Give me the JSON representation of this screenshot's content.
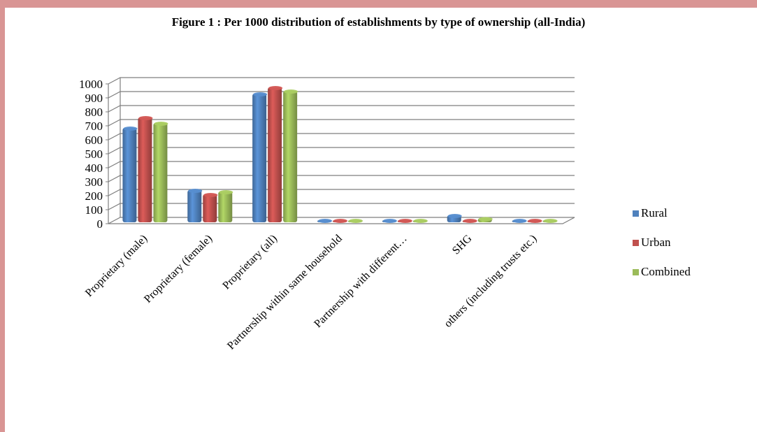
{
  "chart_data": {
    "type": "bar",
    "title": "Figure 1 : Per 1000 distribution of establishments by type of ownership (all-India)",
    "categories": [
      "Proprietary (male)",
      "Proprietary (female)",
      "Proprietary (all)",
      "Partnership within  same household",
      "Partnership with  different…",
      "SHG",
      "others (including trusts etc.)"
    ],
    "series": [
      {
        "name": "Rural",
        "color": "#4f81bd",
        "values": [
          685,
          240,
          930,
          3,
          5,
          60,
          10
        ]
      },
      {
        "name": "Urban",
        "color": "#c0504d",
        "values": [
          760,
          210,
          975,
          7,
          8,
          18,
          12
        ]
      },
      {
        "name": "Combined",
        "color": "#9bbb59",
        "values": [
          720,
          230,
          950,
          4,
          6,
          38,
          11
        ]
      }
    ],
    "y_ticks": [
      "0",
      "100",
      "200",
      "300",
      "400",
      "500",
      "600",
      "700",
      "800",
      "900",
      "1000"
    ],
    "ylim": [
      0,
      1000
    ],
    "grid": true,
    "legend_position": "right"
  }
}
